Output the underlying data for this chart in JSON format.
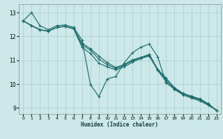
{
  "xlabel": "Humidex (Indice chaleur)",
  "background_color": "#cce8e8",
  "grid_color": "#aacccc",
  "line_color": "#1a6b6b",
  "xlim": [
    -0.5,
    23.5
  ],
  "ylim": [
    8.75,
    13.35
  ],
  "yticks": [
    9,
    10,
    11,
    12,
    13
  ],
  "xticks": [
    0,
    1,
    2,
    3,
    4,
    5,
    6,
    7,
    8,
    9,
    10,
    11,
    12,
    13,
    14,
    15,
    16,
    17,
    18,
    19,
    20,
    21,
    22,
    23
  ],
  "series": [
    [
      12.65,
      13.0,
      12.45,
      12.28,
      12.45,
      12.48,
      12.38,
      11.85,
      9.98,
      9.48,
      10.22,
      10.32,
      10.88,
      11.32,
      11.55,
      11.68,
      11.15,
      10.05,
      9.8,
      9.6,
      9.5,
      9.38,
      9.18,
      8.9
    ],
    [
      12.65,
      12.45,
      12.28,
      12.22,
      12.38,
      12.42,
      12.32,
      11.55,
      11.28,
      10.88,
      10.72,
      10.6,
      10.72,
      10.92,
      11.08,
      11.18,
      10.58,
      10.1,
      9.78,
      9.55,
      9.42,
      9.3,
      9.12,
      8.9
    ],
    [
      12.65,
      12.45,
      12.28,
      12.22,
      12.38,
      12.42,
      12.32,
      11.65,
      11.42,
      11.05,
      10.82,
      10.65,
      10.78,
      10.98,
      11.1,
      11.22,
      10.6,
      10.18,
      9.82,
      9.6,
      9.45,
      9.35,
      9.15,
      8.9
    ],
    [
      12.65,
      12.45,
      12.28,
      12.22,
      12.38,
      12.42,
      12.32,
      11.72,
      11.48,
      11.18,
      10.9,
      10.7,
      10.82,
      11.02,
      11.12,
      11.25,
      10.62,
      10.25,
      9.85,
      9.62,
      9.48,
      9.38,
      9.18,
      8.9
    ]
  ]
}
